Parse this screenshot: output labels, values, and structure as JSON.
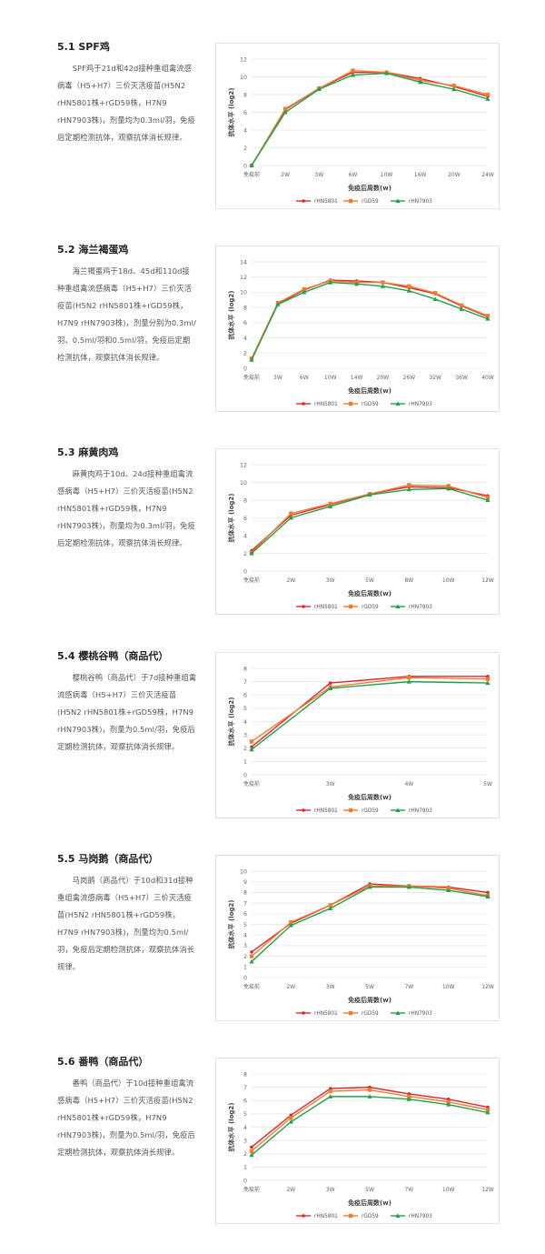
{
  "colors": {
    "rHN5801": "#e0262b",
    "rGD59": "#ee7d31",
    "rHN7903": "#22a04b"
  },
  "sections": [
    {
      "heading": "5.1 SPF鸡",
      "paragraph": "SPF鸡于21d和42d接种重组禽流感病毒（H5+H7）三价灭活疫苗(H5N2  rHN5801株+rGD59株，H7N9 rHN7903株)，剂量均为0.3ml/羽，免疫后定期检测抗体，观察抗体消长规律。"
    },
    {
      "heading": "5.2 海兰褐蛋鸡",
      "paragraph": "海兰褐蛋鸡于18d、45d和110d接种重组禽流感病毒（H5+H7）三价灭活疫苗(H5N2 rHN5801株+rGD59株，H7N9  rHN7903株)，剂量分别为0.3ml/羽、0.5ml/羽和0.5ml/羽，免疫后定期检测抗体，观察抗体消长规律。"
    },
    {
      "heading": "5.3 麻黄肉鸡",
      "paragraph": "麻黄肉鸡于10d、24d接种重组禽流感病毒（H5+H7）三价灭活疫苗(H5N2  rHN5801株+rGD59株，H7N9 rHN7903株)，剂量均为0.3ml/羽，免疫后定期检测抗体，观察抗体消长规律。"
    },
    {
      "heading": "5.4 樱桃谷鸭（商品代）",
      "paragraph": "樱桃谷鸭（商品代）于7d接种重组禽流感病毒（H5+H7）三价灭活疫苗(H5N2  rHN5801株+rGD59株，H7N9 rHN7903株)，剂量为0.5ml/羽，免疫后定期检测抗体，观察抗体消长规律。"
    },
    {
      "heading": "5.5 马岗鹅（商品代）",
      "paragraph": "马岗鹅（商品代）于10d和31d接种重组禽流感病毒（H5+H7）三价灭活疫苗(H5N2  rHN5801株+rGD59株，H7N9  rHN7903株)，剂量均为0.5ml/羽，免疫后定期检测抗体，观察抗体消长规律。"
    },
    {
      "heading": "5.6 番鸭（商品代）",
      "paragraph": "番鸭（商品代）于10d接种重组禽流感病毒（H5+H7）三价灭活疫苗(H5N2  rHN5801株+rGD59株，H7N9 rHN7903株)，剂量为0.5ml/羽，免疫后定期检测抗体，观察抗体消长规律。"
    }
  ],
  "chart_data": [
    {
      "type": "line",
      "xlabel": "免疫后周数(w)",
      "ylabel": "抗体水平 (log2)",
      "ylim": [
        0,
        12
      ],
      "yticks": [
        0,
        2,
        4,
        6,
        8,
        10,
        12
      ],
      "grid": true,
      "legend": "bottom",
      "categories": [
        "免疫前",
        "2W",
        "3W",
        "6W",
        "10W",
        "16W",
        "20W",
        "24W"
      ],
      "series": [
        {
          "name": "rHN5801",
          "values": [
            0,
            6.3,
            8.7,
            10.5,
            10.5,
            9.8,
            8.9,
            7.8
          ]
        },
        {
          "name": "rGD59",
          "values": [
            0,
            6.4,
            8.7,
            10.7,
            10.5,
            9.6,
            9.0,
            8.0
          ]
        },
        {
          "name": "rHN7903",
          "values": [
            0,
            6.0,
            8.6,
            10.2,
            10.4,
            9.4,
            8.6,
            7.5
          ]
        }
      ]
    },
    {
      "type": "line",
      "xlabel": "免疫后周数(w)",
      "ylabel": "抗体水平 (log2)",
      "ylim": [
        0,
        14
      ],
      "yticks": [
        0,
        2,
        4,
        6,
        8,
        10,
        12,
        14
      ],
      "grid": true,
      "legend": "bottom",
      "categories": [
        "免疫前",
        "3W",
        "6W",
        "10W",
        "14W",
        "20W",
        "26W",
        "32W",
        "36W",
        "40W"
      ],
      "series": [
        {
          "name": "rHN5801",
          "values": [
            1.2,
            8.5,
            10.3,
            11.6,
            11.5,
            11.3,
            10.6,
            9.8,
            8.2,
            6.8
          ]
        },
        {
          "name": "rGD59",
          "values": [
            1.3,
            8.6,
            10.4,
            11.5,
            11.3,
            11.3,
            10.8,
            9.9,
            8.3,
            6.9
          ]
        },
        {
          "name": "rHN7903",
          "values": [
            1.1,
            8.4,
            10.0,
            11.3,
            11.1,
            10.8,
            10.2,
            9.1,
            7.8,
            6.5
          ]
        }
      ]
    },
    {
      "type": "line",
      "xlabel": "免疫后周数(w)",
      "ylabel": "抗体水平 (log2)",
      "ylim": [
        0,
        12
      ],
      "yticks": [
        0,
        2,
        4,
        6,
        8,
        10,
        12
      ],
      "grid": true,
      "legend": "bottom",
      "categories": [
        "免疫前",
        "2W",
        "3W",
        "5W",
        "8W",
        "10W",
        "12W"
      ],
      "series": [
        {
          "name": "rHN5801",
          "values": [
            2.3,
            6.3,
            7.5,
            8.7,
            9.5,
            9.4,
            8.5
          ]
        },
        {
          "name": "rGD59",
          "values": [
            2.1,
            6.5,
            7.6,
            8.7,
            9.7,
            9.6,
            8.3
          ]
        },
        {
          "name": "rHN7903",
          "values": [
            2.0,
            6.0,
            7.3,
            8.6,
            9.2,
            9.3,
            8.0
          ]
        }
      ]
    },
    {
      "type": "line",
      "xlabel": "免疫后周数(w)",
      "ylabel": "抗体水平 (log2)",
      "ylim": [
        0,
        8
      ],
      "yticks": [
        0,
        1,
        2,
        3,
        4,
        5,
        6,
        7,
        8
      ],
      "grid": true,
      "legend": "bottom",
      "categories": [
        "免疫前",
        "3W",
        "4W",
        "5W"
      ],
      "series": [
        {
          "name": "rHN5801",
          "values": [
            2.1,
            6.9,
            7.4,
            7.4
          ]
        },
        {
          "name": "rGD59",
          "values": [
            2.5,
            6.6,
            7.3,
            7.2
          ]
        },
        {
          "name": "rHN7903",
          "values": [
            1.9,
            6.5,
            7.0,
            6.9
          ]
        }
      ]
    },
    {
      "type": "line",
      "xlabel": "免疫后周数(w)",
      "ylabel": "抗体水平 (log2)",
      "ylim": [
        0,
        10
      ],
      "yticks": [
        0,
        1,
        2,
        3,
        4,
        5,
        6,
        7,
        8,
        9,
        10
      ],
      "grid": true,
      "legend": "bottom",
      "categories": [
        "免疫前",
        "2W",
        "3W",
        "5W",
        "7W",
        "10W",
        "12W"
      ],
      "series": [
        {
          "name": "rHN5801",
          "values": [
            2.4,
            5.1,
            6.8,
            8.8,
            8.6,
            8.5,
            8.0
          ]
        },
        {
          "name": "rGD59",
          "values": [
            2.0,
            5.2,
            6.8,
            8.6,
            8.6,
            8.4,
            7.7
          ]
        },
        {
          "name": "rHN7903",
          "values": [
            1.5,
            4.9,
            6.5,
            8.5,
            8.5,
            8.2,
            7.6
          ]
        }
      ]
    },
    {
      "type": "line",
      "xlabel": "免疫后周数(w)",
      "ylabel": "抗体水平 (log2)",
      "ylim": [
        0,
        8
      ],
      "yticks": [
        0,
        1,
        2,
        3,
        4,
        5,
        6,
        7,
        8
      ],
      "grid": true,
      "legend": "bottom",
      "categories": [
        "免疫前",
        "2W",
        "3W",
        "5W",
        "7W",
        "10W",
        "12W"
      ],
      "series": [
        {
          "name": "rHN5801",
          "values": [
            2.5,
            4.9,
            6.9,
            7.0,
            6.5,
            6.1,
            5.5
          ]
        },
        {
          "name": "rGD59",
          "values": [
            2.2,
            4.7,
            6.7,
            6.8,
            6.3,
            5.9,
            5.3
          ]
        },
        {
          "name": "rHN7903",
          "values": [
            1.9,
            4.4,
            6.3,
            6.3,
            6.1,
            5.7,
            5.1
          ]
        }
      ]
    }
  ]
}
